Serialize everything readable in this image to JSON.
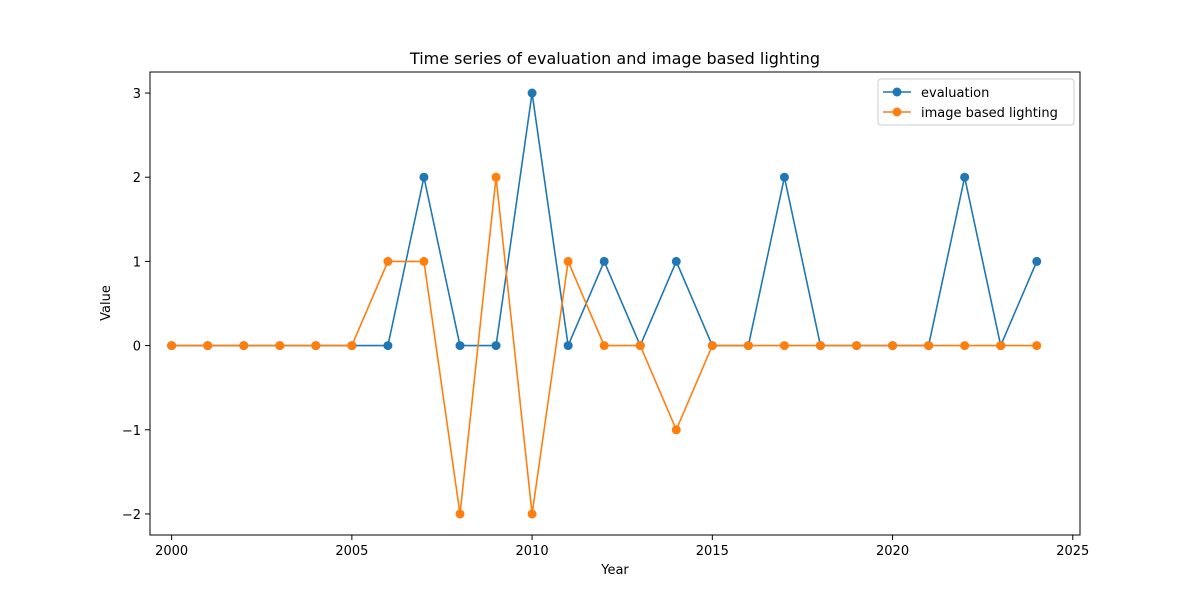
{
  "chart_data": {
    "type": "line",
    "title": "Time series of evaluation and image based lighting",
    "xlabel": "Year",
    "ylabel": "Value",
    "x": [
      2000,
      2001,
      2002,
      2003,
      2004,
      2005,
      2006,
      2007,
      2008,
      2009,
      2010,
      2011,
      2012,
      2013,
      2014,
      2015,
      2016,
      2017,
      2018,
      2019,
      2020,
      2021,
      2022,
      2023,
      2024
    ],
    "series": [
      {
        "name": "evaluation",
        "color": "#1f77b4",
        "values": [
          0,
          0,
          0,
          0,
          0,
          0,
          0,
          2,
          0,
          0,
          3,
          0,
          1,
          0,
          1,
          0,
          0,
          2,
          0,
          0,
          0,
          0,
          2,
          0,
          1
        ]
      },
      {
        "name": "image based lighting",
        "color": "#ff7f0e",
        "values": [
          0,
          0,
          0,
          0,
          0,
          0,
          1,
          1,
          -2,
          2,
          -2,
          1,
          0,
          0,
          -1,
          0,
          0,
          0,
          0,
          0,
          0,
          0,
          0,
          0,
          0
        ]
      }
    ],
    "xlim": [
      1999.4,
      2025.2
    ],
    "ylim": [
      -2.25,
      3.25
    ],
    "xticks": [
      2000,
      2005,
      2010,
      2015,
      2020,
      2025
    ],
    "xtick_labels": [
      "2000",
      "2005",
      "2010",
      "2015",
      "2020",
      "2025"
    ],
    "yticks": [
      -2,
      -1,
      0,
      1,
      2,
      3
    ],
    "ytick_labels": [
      "−2",
      "−1",
      "0",
      "1",
      "2",
      "3"
    ],
    "grid": false,
    "legend_position": "top-right"
  }
}
